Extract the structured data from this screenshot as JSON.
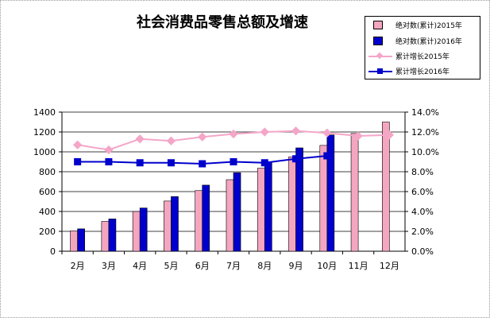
{
  "title": "社会消费品零售总额及增速",
  "chart_data": {
    "type": "bar",
    "title": "社会消费品零售总额及增速",
    "categories": [
      "2月",
      "3月",
      "4月",
      "5月",
      "6月",
      "7月",
      "8月",
      "9月",
      "10月",
      "11月",
      "12月"
    ],
    "left_axis": {
      "min": 0,
      "max": 1400,
      "step": 200,
      "ticks": [
        "0",
        "200",
        "400",
        "600",
        "800",
        "1000",
        "1200",
        "1400"
      ]
    },
    "right_axis": {
      "min": 0,
      "max": 14,
      "step": 2,
      "ticks": [
        "0.0%",
        "2.0%",
        "4.0%",
        "6.0%",
        "8.0%",
        "10.0%",
        "12.0%",
        "14.0%"
      ]
    },
    "grid": true,
    "legend_position": "top-right",
    "series": [
      {
        "name": "绝对数(累计)2015年",
        "type": "bar",
        "axis": "left",
        "color": "#f4a6c0",
        "values": [
          205,
          300,
          400,
          505,
          610,
          720,
          835,
          950,
          1065,
          1185,
          1300
        ]
      },
      {
        "name": "绝对数(累计)2016年",
        "type": "bar",
        "axis": "left",
        "color": "#0000cc",
        "values": [
          225,
          325,
          435,
          550,
          665,
          790,
          900,
          1040,
          1170,
          null,
          null
        ]
      },
      {
        "name": "累计增长2015年",
        "type": "line",
        "axis": "right",
        "color": "#f4a6c8",
        "values": [
          10.7,
          10.2,
          11.3,
          11.1,
          11.5,
          11.8,
          12.0,
          12.1,
          11.9,
          11.6,
          11.7
        ]
      },
      {
        "name": "累计增长2016年",
        "type": "line",
        "axis": "right",
        "color": "#0000cc",
        "values": [
          9.0,
          9.0,
          8.9,
          8.9,
          8.8,
          9.0,
          8.9,
          9.3,
          9.6,
          null,
          null
        ]
      }
    ]
  }
}
